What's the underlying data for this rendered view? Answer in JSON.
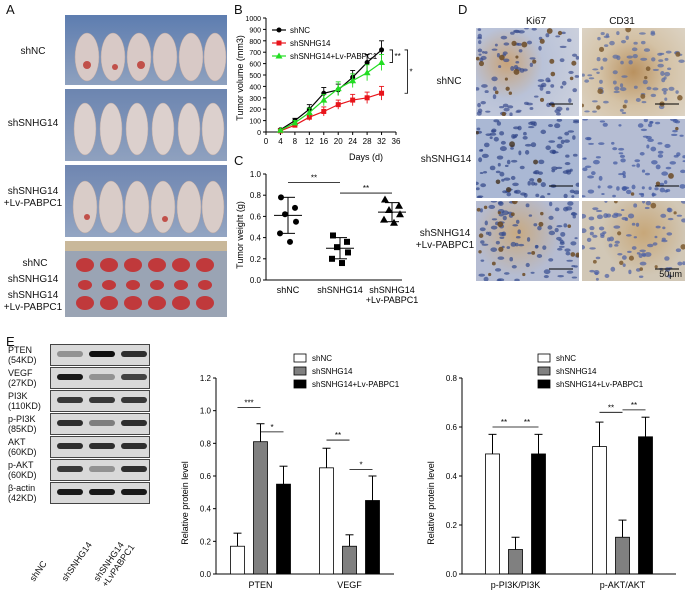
{
  "panels": {
    "A": "A",
    "B": "B",
    "C": "C",
    "D": "D",
    "E": "E"
  },
  "panelA": {
    "rows": [
      "shNC",
      "shSNHG14",
      "shSNHG14\n+Lv-PABPC1"
    ],
    "tumor_rows": [
      "shNC",
      "shSNHG14",
      "shSNHG14\n+Lv-PABPC1"
    ]
  },
  "panelD": {
    "columns": [
      "Ki67",
      "CD31"
    ],
    "rows": [
      "shNC",
      "shSNHG14",
      "shSNHG14\n+Lv-PABPC1"
    ],
    "scalebar": "50μm"
  },
  "panelE_blot": {
    "bands": [
      {
        "label": "PTEN\n(54KD)"
      },
      {
        "label": "VEGF\n(27KD)"
      },
      {
        "label": "PI3K\n(110KD)"
      },
      {
        "label": "p-PI3K\n(85KD)"
      },
      {
        "label": "AKT\n(60KD)"
      },
      {
        "label": "p-AKT\n(60KD)"
      },
      {
        "label": "β-actin\n(42KD)"
      }
    ],
    "lanes": [
      "shNC",
      "shSNHG14",
      "shSNHG14\n+LvPABPC1"
    ]
  },
  "chart_data": [
    {
      "id": "B",
      "type": "line",
      "xlabel": "Days (d)",
      "ylabel": "Tumor volume (mm3)",
      "x": [
        4,
        8,
        12,
        16,
        20,
        24,
        28,
        32
      ],
      "xlim": [
        0,
        36
      ],
      "xticks": [
        0,
        4,
        8,
        12,
        16,
        20,
        24,
        28,
        32,
        36
      ],
      "ylim": [
        0,
        1000
      ],
      "yticks": [
        0,
        100,
        200,
        300,
        400,
        500,
        600,
        700,
        800,
        900,
        1000
      ],
      "series": [
        {
          "name": "shNC",
          "color": "#000000",
          "marker": "circle",
          "values": [
            20,
            100,
            200,
            340,
            370,
            480,
            610,
            720
          ],
          "err": [
            10,
            20,
            40,
            50,
            50,
            60,
            70,
            80
          ]
        },
        {
          "name": "shSNHG14",
          "color": "#e8141b",
          "marker": "square",
          "values": [
            10,
            60,
            130,
            180,
            240,
            280,
            300,
            340
          ],
          "err": [
            8,
            20,
            30,
            40,
            40,
            50,
            50,
            60
          ]
        },
        {
          "name": "shSNHG14+Lv-PABPC1",
          "color": "#22dd22",
          "marker": "triangle",
          "values": [
            15,
            80,
            170,
            280,
            380,
            450,
            520,
            610
          ],
          "err": [
            8,
            20,
            40,
            50,
            60,
            60,
            70,
            70
          ]
        }
      ],
      "annotations": [
        "**",
        "*"
      ]
    },
    {
      "id": "C",
      "type": "scatter",
      "ylabel": "Tumor weight (g)",
      "categories": [
        "shNC",
        "shSNHG14",
        "shSNHG14\n+Lv-PABPC1"
      ],
      "ylim": [
        0,
        1.0
      ],
      "yticks": [
        "0.0",
        "0.2",
        "0.4",
        "0.6",
        "0.8",
        "1.0"
      ],
      "groups": [
        {
          "name": "shNC",
          "marker": "circle",
          "points": [
            0.78,
            0.68,
            0.62,
            0.55,
            0.44,
            0.36
          ],
          "mean": 0.61,
          "sd": 0.17
        },
        {
          "name": "shSNHG14",
          "marker": "square",
          "points": [
            0.42,
            0.36,
            0.31,
            0.26,
            0.2,
            0.16
          ],
          "mean": 0.3,
          "sd": 0.1
        },
        {
          "name": "shSNHG14\n+Lv-PABPC1",
          "marker": "triangle",
          "points": [
            0.76,
            0.7,
            0.66,
            0.62,
            0.57,
            0.54
          ],
          "mean": 0.64,
          "sd": 0.09
        }
      ],
      "annotations": [
        "**",
        "**"
      ]
    },
    {
      "id": "E1",
      "type": "bar",
      "ylabel": "Relative protein level",
      "categories": [
        "PTEN",
        "VEGF"
      ],
      "ylim": [
        0,
        1.2
      ],
      "yticks": [
        "0.0",
        "0.2",
        "0.4",
        "0.6",
        "0.8",
        "1.0",
        "1.2"
      ],
      "series": [
        {
          "name": "shNC",
          "color": "#ffffff",
          "values": [
            0.17,
            0.65
          ],
          "err": [
            0.08,
            0.12
          ]
        },
        {
          "name": "shSNHG14",
          "color": "#808080",
          "values": [
            0.81,
            0.17
          ],
          "err": [
            0.11,
            0.07
          ]
        },
        {
          "name": "shSNHG14+Lv-PABPC1",
          "color": "#000000",
          "values": [
            0.55,
            0.45
          ],
          "err": [
            0.11,
            0.15
          ]
        }
      ],
      "annotations": [
        "***",
        "*",
        "**",
        "*"
      ]
    },
    {
      "id": "E2",
      "type": "bar",
      "ylabel": "Relative protein level",
      "categories": [
        "p-PI3K/PI3K",
        "p-AKT/AKT"
      ],
      "ylim": [
        0,
        0.8
      ],
      "yticks": [
        "0.0",
        "0.2",
        "0.4",
        "0.6",
        "0.8"
      ],
      "series": [
        {
          "name": "shNC",
          "color": "#ffffff",
          "values": [
            0.49,
            0.52
          ],
          "err": [
            0.08,
            0.1
          ]
        },
        {
          "name": "shSNHG14",
          "color": "#808080",
          "values": [
            0.1,
            0.15
          ],
          "err": [
            0.05,
            0.07
          ]
        },
        {
          "name": "shSNHG14+Lv-PABPC1",
          "color": "#000000",
          "values": [
            0.49,
            0.56
          ],
          "err": [
            0.08,
            0.08
          ]
        }
      ],
      "annotations": [
        "**",
        "**",
        "**",
        "**"
      ]
    }
  ]
}
